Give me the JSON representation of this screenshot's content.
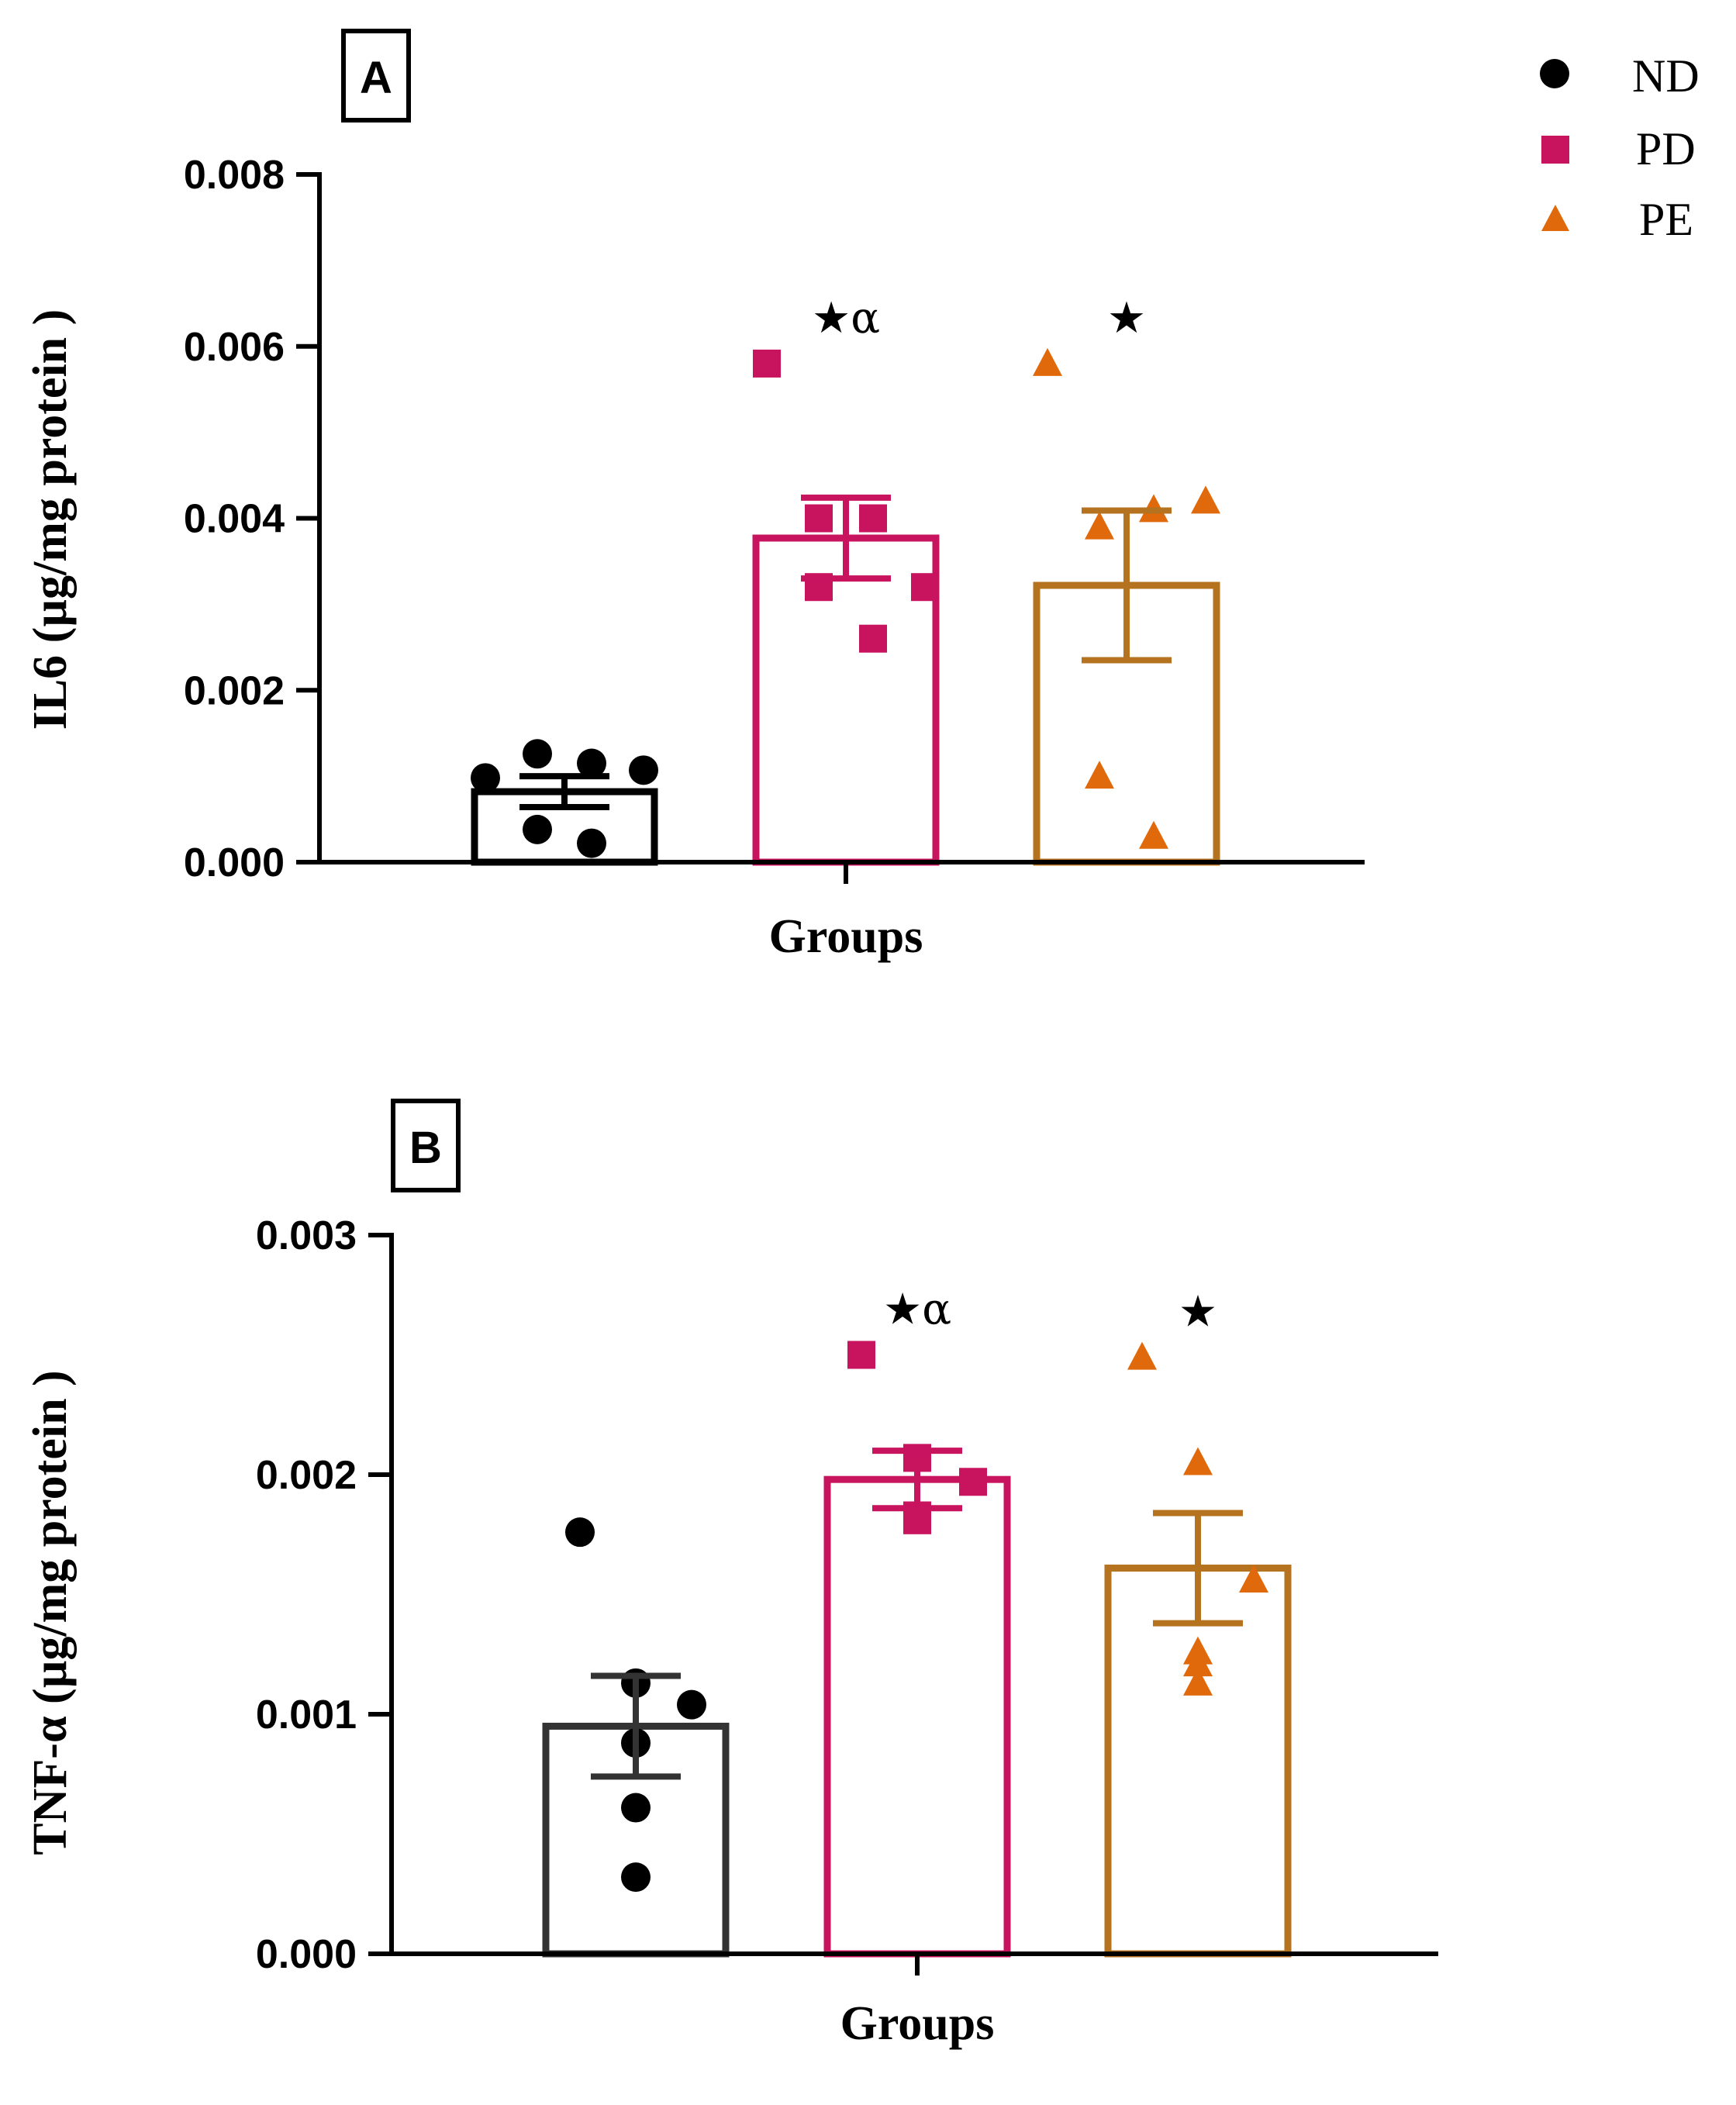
{
  "legend": [
    {
      "label": "ND",
      "color": "#000000",
      "marker": "circle"
    },
    {
      "label": "PD",
      "color": "#c8135f",
      "marker": "square"
    },
    {
      "label": "PE",
      "color": "#e06a0b",
      "marker": "triangle"
    }
  ],
  "chart_data": [
    {
      "type": "bar",
      "panel": "A",
      "title": "",
      "xlabel": "Groups",
      "ylabel": "IL6 (µg/mg protein )",
      "ylim": [
        0,
        0.008
      ],
      "yticks": [
        "0.000",
        "0.002",
        "0.004",
        "0.006",
        "0.008"
      ],
      "ytick_values": [
        0,
        0.002,
        0.004,
        0.006,
        0.008
      ],
      "categories": [
        "ND",
        "PD",
        "PE"
      ],
      "bar_edge_colors": [
        "#000000",
        "#c8135f",
        "#b5721f"
      ],
      "point_colors": [
        "#000000",
        "#c8135f",
        "#e06a0b"
      ],
      "means": [
        0.00082,
        0.00377,
        0.00322
      ],
      "sem": [
        0.00018,
        0.00047,
        0.00087
      ],
      "points": [
        [
          0.00098,
          0.00126,
          0.00115,
          0.00107,
          0.00038,
          0.00022
        ],
        [
          0.0058,
          0.004,
          0.004,
          0.0032,
          0.0032,
          0.0026
        ],
        [
          0.0058,
          0.0039,
          0.0041,
          0.0042,
          0.001,
          0.0003
        ]
      ],
      "annotations": [
        "",
        "★α",
        "★"
      ]
    },
    {
      "type": "bar",
      "panel": "B",
      "title": "",
      "xlabel": "Groups",
      "ylabel": "TNF-α (µg/mg protein )",
      "ylim": [
        0,
        0.003
      ],
      "yticks": [
        "0.000",
        "0.001",
        "0.002",
        "0.003"
      ],
      "ytick_values": [
        0,
        0.001,
        0.002,
        0.003
      ],
      "categories": [
        "ND",
        "PD",
        "PE"
      ],
      "bar_edge_colors": [
        "#333333",
        "#c8135f",
        "#b5721f"
      ],
      "point_colors": [
        "#000000",
        "#c8135f",
        "#e06a0b"
      ],
      "means": [
        0.00095,
        0.00198,
        0.00161
      ],
      "sem": [
        0.00021,
        0.00012,
        0.00023
      ],
      "points": [
        [
          0.00176,
          0.00113,
          0.00104,
          0.00088,
          0.00061,
          0.00032
        ],
        [
          0.0025,
          0.00207,
          0.00197,
          0.00183,
          0.00181,
          0.00181
        ],
        [
          0.00249,
          0.00205,
          0.00156,
          0.00126,
          0.00121,
          0.00113
        ]
      ],
      "annotations": [
        "",
        "★α",
        "★"
      ]
    }
  ]
}
